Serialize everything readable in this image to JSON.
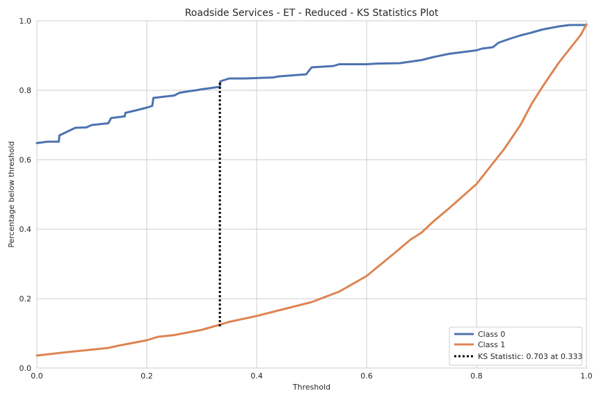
{
  "chart_data": {
    "type": "line",
    "title": "Roadside Services - ET - Reduced - KS Statistics Plot",
    "xlabel": "Threshold",
    "ylabel": "Percentage below threshold",
    "xlim": [
      0,
      1
    ],
    "ylim": [
      0,
      1
    ],
    "xticks": [
      "0.0",
      "0.2",
      "0.4",
      "0.6",
      "0.8",
      "1.0"
    ],
    "yticks": [
      "0.0",
      "0.2",
      "0.4",
      "0.6",
      "0.8",
      "1.0"
    ],
    "grid": true,
    "legend_position": "bottom-right",
    "series": [
      {
        "name": "Class 0",
        "color": "#4c72b0",
        "x": [
          0,
          0.02,
          0.04,
          0.041,
          0.07,
          0.09,
          0.1,
          0.13,
          0.135,
          0.16,
          0.161,
          0.18,
          0.2,
          0.21,
          0.212,
          0.25,
          0.26,
          0.28,
          0.29,
          0.3,
          0.31,
          0.333,
          0.334,
          0.35,
          0.38,
          0.43,
          0.44,
          0.49,
          0.5,
          0.54,
          0.55,
          0.6,
          0.62,
          0.66,
          0.7,
          0.72,
          0.75,
          0.8,
          0.81,
          0.83,
          0.84,
          0.86,
          0.88,
          0.9,
          0.92,
          0.95,
          0.97,
          1.0
        ],
        "y": [
          0.648,
          0.652,
          0.652,
          0.67,
          0.692,
          0.693,
          0.7,
          0.705,
          0.72,
          0.725,
          0.735,
          0.742,
          0.75,
          0.755,
          0.778,
          0.785,
          0.793,
          0.798,
          0.8,
          0.803,
          0.805,
          0.81,
          0.826,
          0.834,
          0.834,
          0.837,
          0.84,
          0.846,
          0.866,
          0.87,
          0.875,
          0.875,
          0.877,
          0.878,
          0.887,
          0.895,
          0.905,
          0.915,
          0.92,
          0.924,
          0.937,
          0.948,
          0.958,
          0.966,
          0.975,
          0.984,
          0.988,
          0.988
        ]
      },
      {
        "name": "Class 1",
        "color": "#dd8452",
        "x": [
          0,
          0.05,
          0.1,
          0.13,
          0.15,
          0.2,
          0.22,
          0.25,
          0.3,
          0.333,
          0.35,
          0.4,
          0.45,
          0.5,
          0.55,
          0.6,
          0.65,
          0.68,
          0.7,
          0.72,
          0.75,
          0.8,
          0.82,
          0.85,
          0.88,
          0.9,
          0.92,
          0.95,
          0.98,
          0.99,
          1.0
        ],
        "y": [
          0.036,
          0.045,
          0.053,
          0.058,
          0.065,
          0.08,
          0.09,
          0.095,
          0.11,
          0.125,
          0.133,
          0.15,
          0.17,
          0.19,
          0.22,
          0.265,
          0.33,
          0.37,
          0.39,
          0.42,
          0.46,
          0.53,
          0.57,
          0.63,
          0.7,
          0.76,
          0.81,
          0.88,
          0.94,
          0.96,
          0.99
        ]
      }
    ],
    "ks": {
      "name": "KS Statistic: 0.703 at 0.333",
      "x": 0.333,
      "y_start": 0.12,
      "y_end": 0.822,
      "color": "#000000"
    }
  }
}
